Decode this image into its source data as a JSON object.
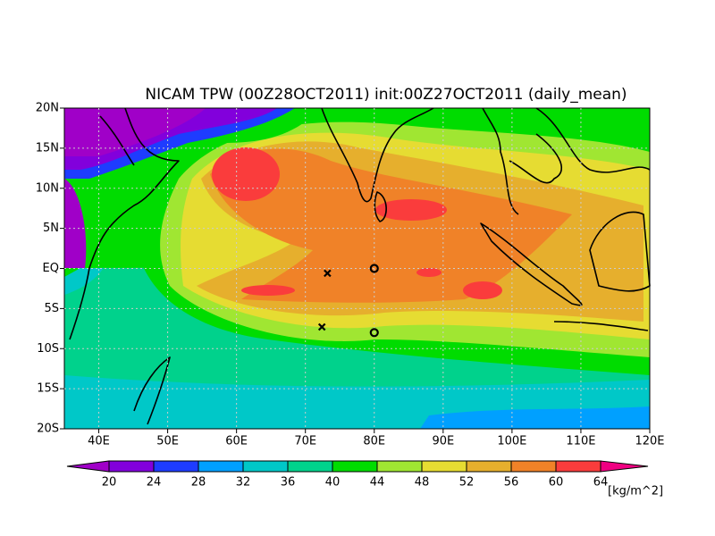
{
  "map": {
    "title": "NICAM TPW (00Z28OCT2011) init:00Z27OCT2011 (daily_mean)",
    "xlim": [
      35,
      120
    ],
    "ylim": [
      -20,
      20
    ],
    "xticks": [
      {
        "value": 40,
        "label": "40E"
      },
      {
        "value": 50,
        "label": "50E"
      },
      {
        "value": 60,
        "label": "60E"
      },
      {
        "value": 70,
        "label": "70E"
      },
      {
        "value": 80,
        "label": "80E"
      },
      {
        "value": 90,
        "label": "90E"
      },
      {
        "value": 100,
        "label": "100E"
      },
      {
        "value": 110,
        "label": "110E"
      },
      {
        "value": 120,
        "label": "120E"
      }
    ],
    "yticks": [
      {
        "value": -20,
        "label": "20S"
      },
      {
        "value": -15,
        "label": "15S"
      },
      {
        "value": -10,
        "label": "10S"
      },
      {
        "value": -5,
        "label": "5S"
      },
      {
        "value": 0,
        "label": "EQ"
      },
      {
        "value": 5,
        "label": "5N"
      },
      {
        "value": 10,
        "label": "10N"
      },
      {
        "value": 15,
        "label": "15N"
      },
      {
        "value": 20,
        "label": "20N"
      }
    ],
    "grid": true,
    "markers": [
      {
        "symbol": "x",
        "lon": 73.2,
        "lat": -0.6
      },
      {
        "symbol": "x",
        "lon": 72.4,
        "lat": -7.3
      },
      {
        "symbol": "o",
        "lon": 80,
        "lat": 0
      },
      {
        "symbol": "o",
        "lon": 80,
        "lat": -8
      }
    ],
    "colorbar": {
      "levels": [
        20,
        24,
        28,
        32,
        36,
        40,
        44,
        48,
        52,
        56,
        60,
        64
      ],
      "colors": [
        "#a000c8",
        "#8200dc",
        "#1e3cff",
        "#00a0ff",
        "#00c8c8",
        "#00d28c",
        "#00dc00",
        "#a0e632",
        "#e6dc32",
        "#e6af2d",
        "#f08228",
        "#fa3c3c",
        "#f00082"
      ],
      "units": "[kg/m^2]"
    }
  }
}
